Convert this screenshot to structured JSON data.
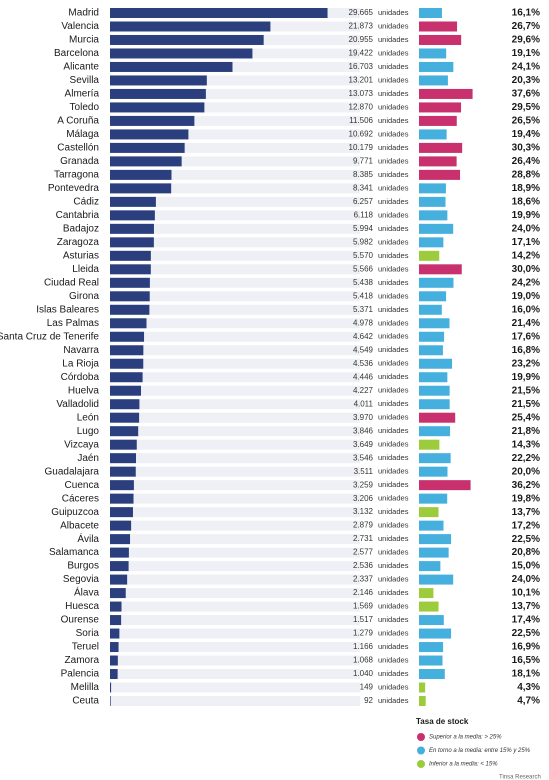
{
  "chart_data": {
    "type": "bar",
    "orientation": "horizontal",
    "categories": [
      "Madrid",
      "Valencia",
      "Murcia",
      "Barcelona",
      "Alicante",
      "Sevilla",
      "Almería",
      "Toledo",
      "A Coruña",
      "Málaga",
      "Castellón",
      "Granada",
      "Tarragona",
      "Pontevedra",
      "Cádiz",
      "Cantabria",
      "Badajoz",
      "Zaragoza",
      "Asturias",
      "Lleida",
      "Ciudad Real",
      "Girona",
      "Islas Baleares",
      "Las Palmas",
      "Santa Cruz de Tenerife",
      "Navarra",
      "La Rioja",
      "Córdoba",
      "Huelva",
      "Valladolid",
      "León",
      "Lugo",
      "Vizcaya",
      "Jaén",
      "Guadalajara",
      "Cuenca",
      "Cáceres",
      "Guipuzcoa",
      "Albacete",
      "Ávila",
      "Salamanca",
      "Burgos",
      "Segovia",
      "Álava",
      "Huesca",
      "Ourense",
      "Soria",
      "Teruel",
      "Zamora",
      "Palencia",
      "Melilla",
      "Ceuta"
    ],
    "series": [
      {
        "unit": "unidades",
        "color": "#2b3f7e",
        "values": [
          29665,
          21873,
          20955,
          19422,
          16703,
          13201,
          13073,
          12870,
          11506,
          10692,
          10179,
          9771,
          8385,
          8341,
          6257,
          6118,
          5994,
          5982,
          5570,
          5566,
          5438,
          5418,
          5371,
          4978,
          4642,
          4549,
          4536,
          4446,
          4227,
          4011,
          3970,
          3846,
          3649,
          3546,
          3511,
          3259,
          3206,
          3132,
          2879,
          2731,
          2577,
          2536,
          2337,
          2146,
          1569,
          1517,
          1279,
          1166,
          1068,
          1040,
          149,
          92
        ],
        "value_labels": [
          "29.665",
          "21.873",
          "20.955",
          "19.422",
          "16.703",
          "13.201",
          "13.073",
          "12.870",
          "11.506",
          "10.692",
          "10.179",
          "9.771",
          "8.385",
          "8.341",
          "6.257",
          "6.118",
          "5.994",
          "5.982",
          "5.570",
          "5.566",
          "5.438",
          "5.418",
          "5.371",
          "4.978",
          "4.642",
          "4.549",
          "4.536",
          "4.446",
          "4.227",
          "4.011",
          "3.970",
          "3.846",
          "3.649",
          "3.546",
          "3.511",
          "3.259",
          "3.206",
          "3.132",
          "2.879",
          "2.731",
          "2.577",
          "2.536",
          "2.337",
          "2.146",
          "1.569",
          "1.517",
          "1.279",
          "1.166",
          "1.068",
          "1.040",
          "149",
          "92"
        ]
      },
      {
        "axis": "x2",
        "values": [
          16.1,
          26.7,
          29.6,
          19.1,
          24.1,
          20.3,
          37.6,
          29.5,
          26.5,
          19.4,
          30.3,
          26.4,
          28.8,
          18.9,
          18.6,
          19.9,
          24.0,
          17.1,
          14.2,
          30.0,
          24.2,
          19.0,
          16.0,
          21.4,
          17.6,
          16.8,
          23.2,
          19.9,
          21.5,
          21.5,
          25.4,
          21.8,
          14.3,
          22.2,
          20.0,
          36.2,
          19.8,
          13.7,
          17.2,
          22.5,
          20.8,
          15.0,
          24.0,
          10.1,
          13.7,
          17.4,
          22.5,
          16.9,
          16.5,
          18.1,
          4.3,
          4.7
        ],
        "value_labels": [
          "16,1%",
          "26,7%",
          "29,6%",
          "19,1%",
          "24,1%",
          "20,3%",
          "37,6%",
          "29,5%",
          "26,5%",
          "19,4%",
          "30,3%",
          "26,4%",
          "28,8%",
          "18,9%",
          "18,6%",
          "19,9%",
          "24,0%",
          "17,1%",
          "14,2%",
          "30,0%",
          "24,2%",
          "19,0%",
          "16,0%",
          "21,4%",
          "17,6%",
          "16,8%",
          "23,2%",
          "19,9%",
          "21,5%",
          "21,5%",
          "25,4%",
          "21,8%",
          "14,3%",
          "22,2%",
          "20,0%",
          "36,2%",
          "19,8%",
          "13,7%",
          "17,2%",
          "22,5%",
          "20,8%",
          "15,0%",
          "24,0%",
          "10,1%",
          "13,7%",
          "17,4%",
          "22,5%",
          "16,9%",
          "16,5%",
          "18,1%",
          "4,3%",
          "4,7%"
        ],
        "colors": [
          "#45b0dd",
          "#c8306e",
          "#c8306e",
          "#45b0dd",
          "#45b0dd",
          "#45b0dd",
          "#c8306e",
          "#c8306e",
          "#c8306e",
          "#45b0dd",
          "#c8306e",
          "#c8306e",
          "#c8306e",
          "#45b0dd",
          "#45b0dd",
          "#45b0dd",
          "#45b0dd",
          "#45b0dd",
          "#9ccc3c",
          "#c8306e",
          "#45b0dd",
          "#45b0dd",
          "#45b0dd",
          "#45b0dd",
          "#45b0dd",
          "#45b0dd",
          "#45b0dd",
          "#45b0dd",
          "#45b0dd",
          "#45b0dd",
          "#c8306e",
          "#45b0dd",
          "#9ccc3c",
          "#45b0dd",
          "#45b0dd",
          "#c8306e",
          "#45b0dd",
          "#9ccc3c",
          "#45b0dd",
          "#45b0dd",
          "#45b0dd",
          "#45b0dd",
          "#45b0dd",
          "#9ccc3c",
          "#9ccc3c",
          "#45b0dd",
          "#45b0dd",
          "#45b0dd",
          "#45b0dd",
          "#45b0dd",
          "#9ccc3c",
          "#9ccc3c"
        ]
      }
    ],
    "xlim": [
      0,
      30000
    ],
    "x2lim": [
      0,
      40
    ],
    "legend": {
      "title": "Tasa de stock",
      "items": [
        {
          "label": "Superior a la media: > 25%",
          "color": "#c8306e"
        },
        {
          "label": "En torno a la media: entre 15% y 25%",
          "color": "#45b0dd"
        },
        {
          "label": "Inferior a la media: < 15%",
          "color": "#9ccc3c"
        }
      ]
    },
    "source": "Tinsa Research"
  }
}
